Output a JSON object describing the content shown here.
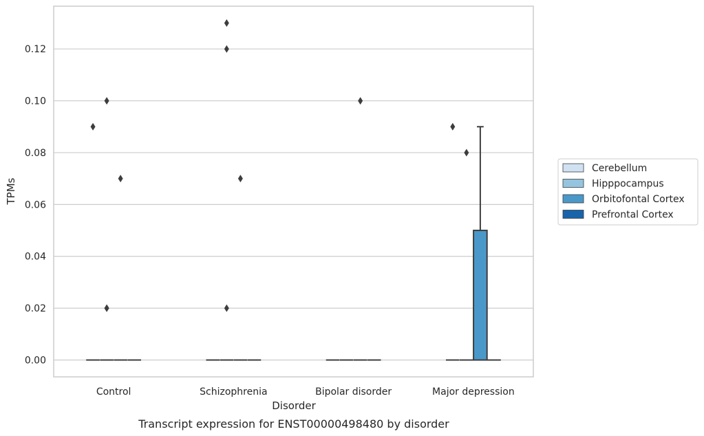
{
  "chart_data": {
    "type": "box",
    "caption": "Transcript expression for ENST00000498480 by disorder",
    "xlabel": "Disorder",
    "ylabel": "TPMs",
    "ylim": [
      -0.0065,
      0.1365
    ],
    "yticks": [
      "0.00",
      "0.02",
      "0.04",
      "0.06",
      "0.08",
      "0.10",
      "0.12"
    ],
    "grid": "horizontal",
    "legend_placement": "right",
    "categories": [
      "Control",
      "Schizophrenia",
      "Bipolar disorder",
      "Major depression"
    ],
    "series": [
      {
        "name": "Cerebellum",
        "color": "#d0e1f2"
      },
      {
        "name": "Hipppocampus",
        "color": "#94c4df"
      },
      {
        "name": "Orbitofontal Cortex",
        "color": "#4a98c9"
      },
      {
        "name": "Prefrontal Cortex",
        "color": "#1764ab"
      }
    ],
    "boxes": [
      {
        "category": "Control",
        "series": "Cerebellum",
        "q1": 0,
        "median": 0,
        "q3": 0,
        "whisker_low": 0,
        "whisker_high": 0,
        "outliers": [
          0.09
        ]
      },
      {
        "category": "Control",
        "series": "Hipppocampus",
        "q1": 0,
        "median": 0,
        "q3": 0,
        "whisker_low": 0,
        "whisker_high": 0,
        "outliers": [
          0.1,
          0.02,
          0.02
        ]
      },
      {
        "category": "Control",
        "series": "Orbitofontal Cortex",
        "q1": 0,
        "median": 0,
        "q3": 0,
        "whisker_low": 0,
        "whisker_high": 0,
        "outliers": [
          0.07
        ]
      },
      {
        "category": "Control",
        "series": "Prefrontal Cortex",
        "q1": 0,
        "median": 0,
        "q3": 0,
        "whisker_low": 0,
        "whisker_high": 0,
        "outliers": []
      },
      {
        "category": "Schizophrenia",
        "series": "Cerebellum",
        "q1": 0,
        "median": 0,
        "q3": 0,
        "whisker_low": 0,
        "whisker_high": 0,
        "outliers": []
      },
      {
        "category": "Schizophrenia",
        "series": "Hipppocampus",
        "q1": 0,
        "median": 0,
        "q3": 0,
        "whisker_low": 0,
        "whisker_high": 0,
        "outliers": [
          0.13,
          0.12,
          0.02
        ]
      },
      {
        "category": "Schizophrenia",
        "series": "Orbitofontal Cortex",
        "q1": 0,
        "median": 0,
        "q3": 0,
        "whisker_low": 0,
        "whisker_high": 0,
        "outliers": [
          0.07
        ]
      },
      {
        "category": "Schizophrenia",
        "series": "Prefrontal Cortex",
        "q1": 0,
        "median": 0,
        "q3": 0,
        "whisker_low": 0,
        "whisker_high": 0,
        "outliers": []
      },
      {
        "category": "Bipolar disorder",
        "series": "Cerebellum",
        "q1": 0,
        "median": 0,
        "q3": 0,
        "whisker_low": 0,
        "whisker_high": 0,
        "outliers": []
      },
      {
        "category": "Bipolar disorder",
        "series": "Hipppocampus",
        "q1": 0,
        "median": 0,
        "q3": 0,
        "whisker_low": 0,
        "whisker_high": 0,
        "outliers": []
      },
      {
        "category": "Bipolar disorder",
        "series": "Orbitofontal Cortex",
        "q1": 0,
        "median": 0,
        "q3": 0,
        "whisker_low": 0,
        "whisker_high": 0,
        "outliers": [
          0.1
        ]
      },
      {
        "category": "Bipolar disorder",
        "series": "Prefrontal Cortex",
        "q1": 0,
        "median": 0,
        "q3": 0,
        "whisker_low": 0,
        "whisker_high": 0,
        "outliers": []
      },
      {
        "category": "Major depression",
        "series": "Cerebellum",
        "q1": 0,
        "median": 0,
        "q3": 0,
        "whisker_low": 0,
        "whisker_high": 0,
        "outliers": [
          0.09
        ]
      },
      {
        "category": "Major depression",
        "series": "Hipppocampus",
        "q1": 0,
        "median": 0,
        "q3": 0,
        "whisker_low": 0,
        "whisker_high": 0,
        "outliers": [
          0.08
        ]
      },
      {
        "category": "Major depression",
        "series": "Orbitofontal Cortex",
        "q1": 0,
        "median": 0,
        "q3": 0.05,
        "whisker_low": 0,
        "whisker_high": 0.09,
        "outliers": []
      },
      {
        "category": "Major depression",
        "series": "Prefrontal Cortex",
        "q1": 0,
        "median": 0,
        "q3": 0,
        "whisker_low": 0,
        "whisker_high": 0,
        "outliers": []
      }
    ]
  }
}
